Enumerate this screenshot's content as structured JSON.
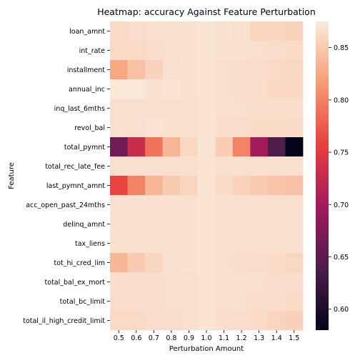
{
  "chart_data": {
    "type": "heatmap",
    "title": "Heatmap: accuracy Against Feature Perturbation",
    "xlabel": "Perturbation Amount",
    "ylabel": "Feature",
    "x": [
      "0.5",
      "0.6",
      "0.7",
      "0.8",
      "0.9",
      "1.0",
      "1.1",
      "1.2",
      "1.3",
      "1.4",
      "1.5"
    ],
    "y": [
      "loan_amnt",
      "int_rate",
      "installment",
      "annual_inc",
      "inq_last_6mths",
      "revol_bal",
      "total_pymnt",
      "total_rec_late_fee",
      "last_pymnt_amnt",
      "acc_open_past_24mths",
      "delinq_amnt",
      "tax_liens",
      "tot_hi_cred_lim",
      "total_bal_ex_mort",
      "total_bc_limit",
      "total_il_high_credit_limit"
    ],
    "values": [
      [
        0.862,
        0.864,
        0.866,
        0.866,
        0.868,
        0.87,
        0.868,
        0.866,
        0.858,
        0.858,
        0.856
      ],
      [
        0.862,
        0.862,
        0.864,
        0.866,
        0.867,
        0.87,
        0.868,
        0.867,
        0.866,
        0.864,
        0.863
      ],
      [
        0.825,
        0.843,
        0.857,
        0.866,
        0.868,
        0.87,
        0.866,
        0.865,
        0.864,
        0.862,
        0.86
      ],
      [
        0.873,
        0.873,
        0.868,
        0.87,
        0.867,
        0.87,
        0.866,
        0.865,
        0.864,
        0.861,
        0.86
      ],
      [
        0.866,
        0.866,
        0.866,
        0.866,
        0.866,
        0.87,
        0.866,
        0.866,
        0.865,
        0.865,
        0.865
      ],
      [
        0.866,
        0.866,
        0.869,
        0.867,
        0.866,
        0.87,
        0.865,
        0.864,
        0.863,
        0.863,
        0.862
      ],
      [
        0.665,
        0.73,
        0.79,
        0.836,
        0.86,
        0.87,
        0.853,
        0.8,
        0.7,
        0.64,
        0.58
      ],
      [
        0.866,
        0.866,
        0.866,
        0.866,
        0.866,
        0.87,
        0.866,
        0.866,
        0.866,
        0.866,
        0.866
      ],
      [
        0.76,
        0.8,
        0.836,
        0.85,
        0.858,
        0.87,
        0.862,
        0.856,
        0.85,
        0.845,
        0.843
      ],
      [
        0.867,
        0.867,
        0.867,
        0.867,
        0.867,
        0.87,
        0.867,
        0.867,
        0.866,
        0.866,
        0.866
      ],
      [
        0.867,
        0.867,
        0.867,
        0.867,
        0.867,
        0.87,
        0.867,
        0.867,
        0.867,
        0.867,
        0.867
      ],
      [
        0.867,
        0.867,
        0.867,
        0.867,
        0.867,
        0.87,
        0.867,
        0.867,
        0.867,
        0.867,
        0.867
      ],
      [
        0.837,
        0.851,
        0.859,
        0.866,
        0.868,
        0.87,
        0.866,
        0.865,
        0.864,
        0.863,
        0.86
      ],
      [
        0.865,
        0.865,
        0.865,
        0.866,
        0.866,
        0.87,
        0.867,
        0.867,
        0.866,
        0.864,
        0.864
      ],
      [
        0.864,
        0.864,
        0.865,
        0.866,
        0.866,
        0.87,
        0.867,
        0.866,
        0.864,
        0.864,
        0.863
      ],
      [
        0.862,
        0.862,
        0.864,
        0.865,
        0.866,
        0.87,
        0.865,
        0.864,
        0.863,
        0.858,
        0.855
      ]
    ],
    "colorbar": {
      "min": 0.58,
      "max": 0.875,
      "ticks": [
        "0.60",
        "0.65",
        "0.70",
        "0.75",
        "0.80",
        "0.85"
      ],
      "colormap": "rocket",
      "stops": [
        "#03051a",
        "#4c1d4b",
        "#a11a5b",
        "#e83f3f",
        "#f69c73",
        "#faebdd"
      ]
    }
  }
}
